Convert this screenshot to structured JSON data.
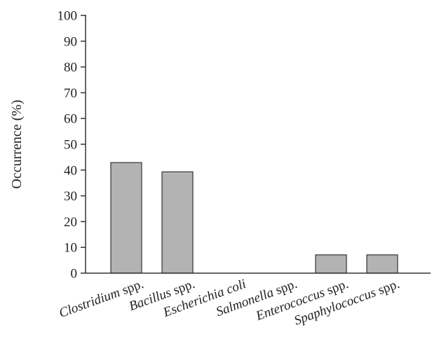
{
  "chart_data": {
    "type": "bar",
    "title": "",
    "xlabel": "",
    "ylabel": "Occurrence (%)",
    "ylim": [
      0,
      100
    ],
    "yticks": [
      0,
      10,
      20,
      30,
      40,
      50,
      60,
      70,
      80,
      90,
      100
    ],
    "grid": false,
    "categories": [
      "Clostridium spp.",
      "Bacillus spp.",
      "Escherichia coli",
      "Salmonella spp.",
      "Enterococcus spp.",
      "Spaphylococcus spp."
    ],
    "category_labels": [
      {
        "italic": "Clostridium",
        "plain": " spp."
      },
      {
        "italic": "Bacillus",
        "plain": " spp."
      },
      {
        "italic": "Escherichia coli",
        "plain": ""
      },
      {
        "italic": "Salmonella",
        "plain": " spp."
      },
      {
        "italic": "Enterococcus",
        "plain": " spp."
      },
      {
        "italic": "Spaphylococcus",
        "plain": " spp."
      }
    ],
    "values": [
      42.9,
      39.3,
      0,
      0,
      7.1,
      7.1
    ],
    "bar_color": "#b3b3b3",
    "bar_edge_color": "#333333"
  }
}
